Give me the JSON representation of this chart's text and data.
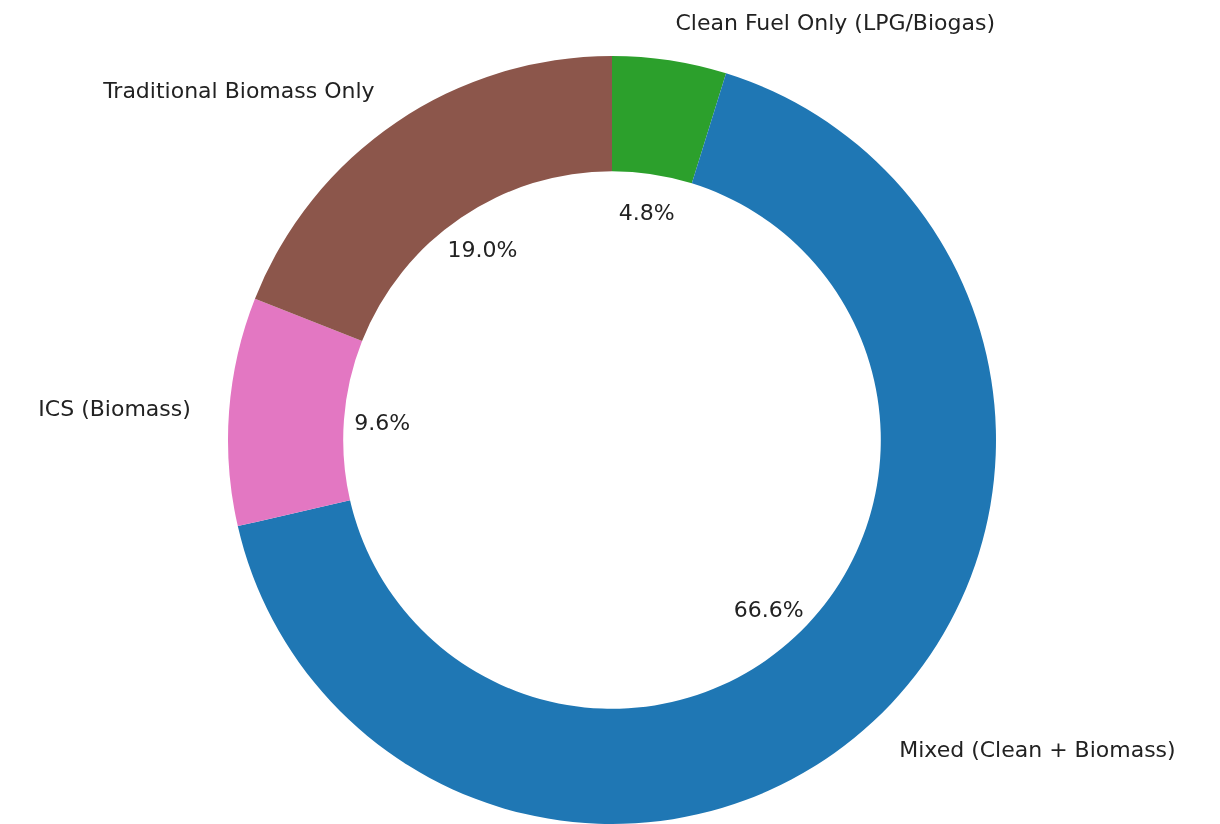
{
  "chart_data": {
    "type": "donut",
    "categories": [
      "Clean Fuel Only (LPG/Biogas)",
      "Mixed (Clean + Biomass)",
      "ICS (Biomass)",
      "Traditional Biomass Only"
    ],
    "values": [
      4.8,
      66.6,
      9.6,
      19.0
    ],
    "colors": [
      "#2ca02c",
      "#1f77b4",
      "#e377c2",
      "#8c564b"
    ],
    "value_labels": [
      "4.8%",
      "66.6%",
      "9.6%",
      "19.0%"
    ]
  }
}
